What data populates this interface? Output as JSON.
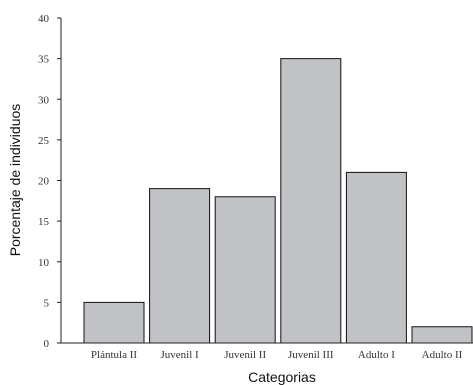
{
  "chart_data": {
    "type": "bar",
    "categories": [
      "Plántula II",
      "Juvenil I",
      "Juvenil II",
      "Juvenil III",
      "Adulto I",
      "Adulto II"
    ],
    "values": [
      5,
      19,
      18,
      35,
      21,
      2
    ],
    "title": "",
    "xlabel": "Categorias",
    "ylabel": "Porcentaje de individuos",
    "ylim": [
      0,
      40
    ],
    "yticks": [
      0,
      5,
      10,
      15,
      20,
      25,
      30,
      35,
      40
    ],
    "grid": false,
    "bar_color": "#c0c2c6",
    "bar_edge_color": "#111111",
    "axis_color": "#222222"
  }
}
